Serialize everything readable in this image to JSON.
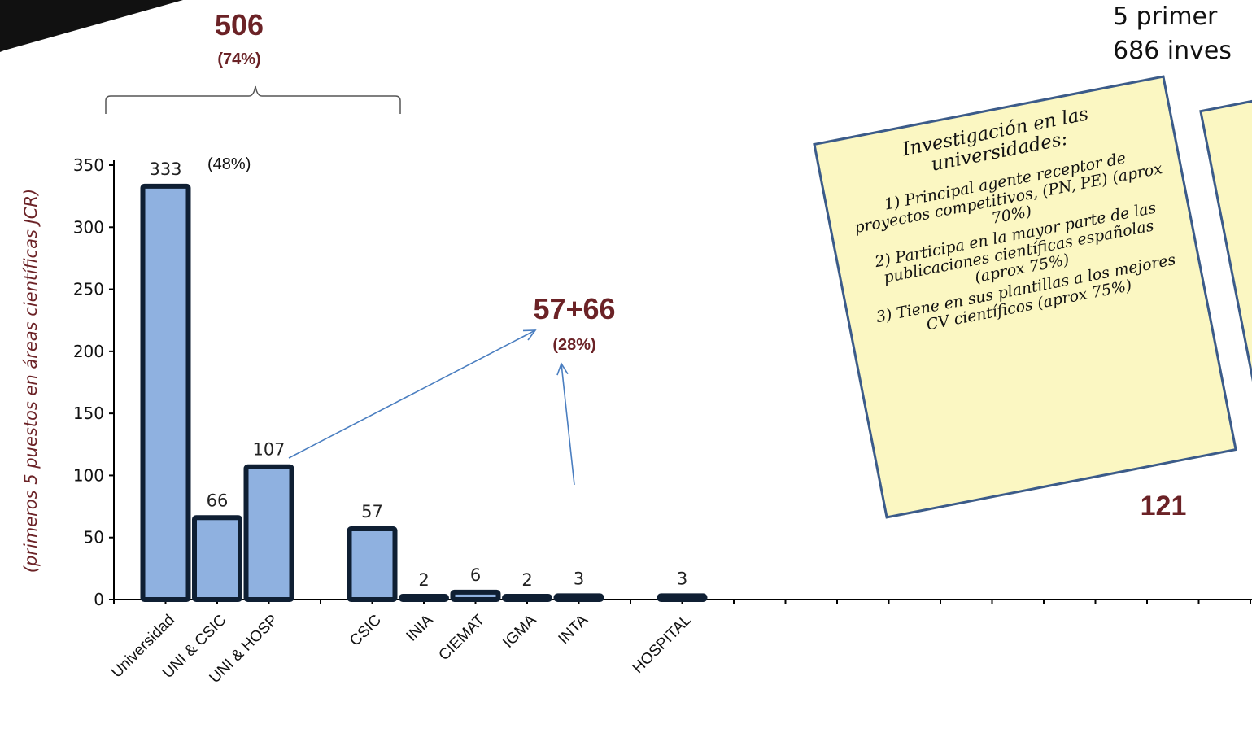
{
  "chart_data": {
    "type": "bar",
    "categories": [
      "Universidad",
      "UNI & CSIC",
      "UNI & HOSP",
      "CSIC",
      "INIA",
      "CIEMAT",
      "IGMA",
      "INTA",
      "HOSPITAL"
    ],
    "values": [
      333,
      66,
      107,
      57,
      2,
      6,
      2,
      3,
      3
    ],
    "value_labels": [
      "333",
      "66",
      "107",
      "57",
      "2",
      "6",
      "2",
      "3",
      "3"
    ],
    "y_ticks": [
      0,
      50,
      100,
      150,
      200,
      250,
      300,
      350
    ],
    "ylim": [
      0,
      350
    ],
    "ylabel": "(primeros 5 puestos en áreas científicas JCR)",
    "bar_color": "#8fb1e0",
    "bar_edge_color": "#0f1f33",
    "annotation_color": "#6b2226",
    "annotations": {
      "total_uni": "506",
      "total_uni_pct": "(74%)",
      "uni_pct": "(48%)",
      "csic_combo": "57+66",
      "csic_combo_pct": "(28%)",
      "hospital_total": "121"
    }
  },
  "header": {
    "line1": "5 primer",
    "line2": "686 inves"
  },
  "note": {
    "title": "Investigación en las universidades:",
    "items": [
      "1) Principal agente receptor de proyectos competitivos, (PN, PE) (aprox 70%)",
      "2) Participa en la mayor parte de las publicaciones científicas españolas (aprox 75%)",
      "3) Tiene en sus plantillas a los mejores CV científicos (aprox 75%)"
    ]
  }
}
